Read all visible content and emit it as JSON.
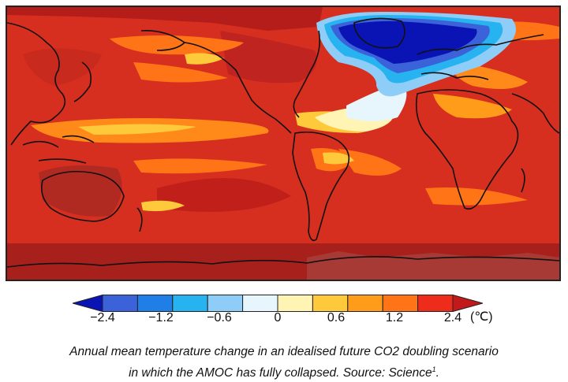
{
  "colorbar": {
    "colors": [
      "#0a14b4",
      "#3c62d9",
      "#1f7fe6",
      "#27b3ef",
      "#8ecdf7",
      "#e7f6fc",
      "#fff4b4",
      "#ffc93c",
      "#ff9c1a",
      "#ff7416",
      "#ee2c1b",
      "#c21a1a"
    ],
    "ticks": [
      "−2.4",
      "−1.2",
      "−0.6",
      "0",
      "0.6",
      "1.2",
      "2.4"
    ],
    "unit": "(℃)"
  },
  "map": {
    "background_color": "#d62f1f",
    "coastline_color": "#111111"
  },
  "caption": {
    "line1": "Annual mean temperature change in an idealised future CO2 doubling scenario",
    "line2": "in which the AMOC has fully collapsed. Source: Science",
    "superscript": "1",
    "line2_end": "."
  }
}
